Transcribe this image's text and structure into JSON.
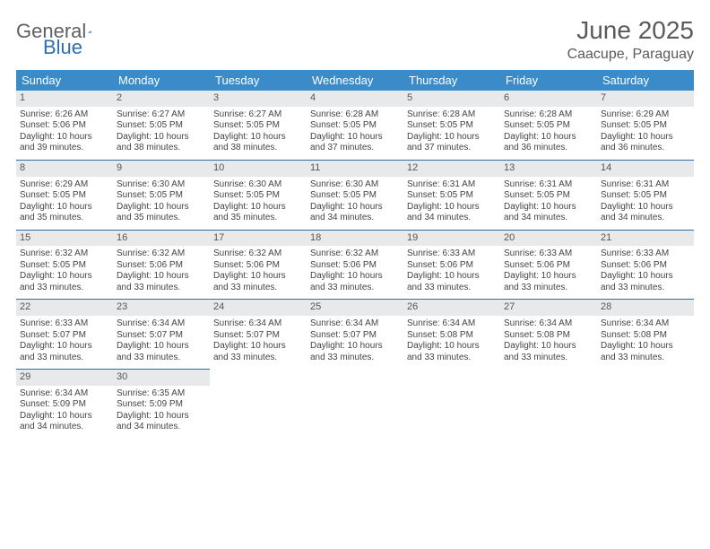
{
  "logo": {
    "text1": "General",
    "text2": "Blue",
    "color1": "#6a6a6a",
    "color2": "#2f6fae",
    "mark_color": "#2f6fae"
  },
  "title": "June 2025",
  "location": "Caacupe, Paraguay",
  "style": {
    "header_bg": "#3b8bc8",
    "daynum_bg": "#e7e9eb",
    "rule_color": "#2e6da4",
    "text_color": "#444444"
  },
  "day_headers": [
    "Sunday",
    "Monday",
    "Tuesday",
    "Wednesday",
    "Thursday",
    "Friday",
    "Saturday"
  ],
  "weeks": [
    [
      {
        "n": "1",
        "sr": "6:26 AM",
        "ss": "5:06 PM",
        "dl": "10 hours and 39 minutes."
      },
      {
        "n": "2",
        "sr": "6:27 AM",
        "ss": "5:05 PM",
        "dl": "10 hours and 38 minutes."
      },
      {
        "n": "3",
        "sr": "6:27 AM",
        "ss": "5:05 PM",
        "dl": "10 hours and 38 minutes."
      },
      {
        "n": "4",
        "sr": "6:28 AM",
        "ss": "5:05 PM",
        "dl": "10 hours and 37 minutes."
      },
      {
        "n": "5",
        "sr": "6:28 AM",
        "ss": "5:05 PM",
        "dl": "10 hours and 37 minutes."
      },
      {
        "n": "6",
        "sr": "6:28 AM",
        "ss": "5:05 PM",
        "dl": "10 hours and 36 minutes."
      },
      {
        "n": "7",
        "sr": "6:29 AM",
        "ss": "5:05 PM",
        "dl": "10 hours and 36 minutes."
      }
    ],
    [
      {
        "n": "8",
        "sr": "6:29 AM",
        "ss": "5:05 PM",
        "dl": "10 hours and 35 minutes."
      },
      {
        "n": "9",
        "sr": "6:30 AM",
        "ss": "5:05 PM",
        "dl": "10 hours and 35 minutes."
      },
      {
        "n": "10",
        "sr": "6:30 AM",
        "ss": "5:05 PM",
        "dl": "10 hours and 35 minutes."
      },
      {
        "n": "11",
        "sr": "6:30 AM",
        "ss": "5:05 PM",
        "dl": "10 hours and 34 minutes."
      },
      {
        "n": "12",
        "sr": "6:31 AM",
        "ss": "5:05 PM",
        "dl": "10 hours and 34 minutes."
      },
      {
        "n": "13",
        "sr": "6:31 AM",
        "ss": "5:05 PM",
        "dl": "10 hours and 34 minutes."
      },
      {
        "n": "14",
        "sr": "6:31 AM",
        "ss": "5:05 PM",
        "dl": "10 hours and 34 minutes."
      }
    ],
    [
      {
        "n": "15",
        "sr": "6:32 AM",
        "ss": "5:05 PM",
        "dl": "10 hours and 33 minutes."
      },
      {
        "n": "16",
        "sr": "6:32 AM",
        "ss": "5:06 PM",
        "dl": "10 hours and 33 minutes."
      },
      {
        "n": "17",
        "sr": "6:32 AM",
        "ss": "5:06 PM",
        "dl": "10 hours and 33 minutes."
      },
      {
        "n": "18",
        "sr": "6:32 AM",
        "ss": "5:06 PM",
        "dl": "10 hours and 33 minutes."
      },
      {
        "n": "19",
        "sr": "6:33 AM",
        "ss": "5:06 PM",
        "dl": "10 hours and 33 minutes."
      },
      {
        "n": "20",
        "sr": "6:33 AM",
        "ss": "5:06 PM",
        "dl": "10 hours and 33 minutes."
      },
      {
        "n": "21",
        "sr": "6:33 AM",
        "ss": "5:06 PM",
        "dl": "10 hours and 33 minutes."
      }
    ],
    [
      {
        "n": "22",
        "sr": "6:33 AM",
        "ss": "5:07 PM",
        "dl": "10 hours and 33 minutes."
      },
      {
        "n": "23",
        "sr": "6:34 AM",
        "ss": "5:07 PM",
        "dl": "10 hours and 33 minutes."
      },
      {
        "n": "24",
        "sr": "6:34 AM",
        "ss": "5:07 PM",
        "dl": "10 hours and 33 minutes."
      },
      {
        "n": "25",
        "sr": "6:34 AM",
        "ss": "5:07 PM",
        "dl": "10 hours and 33 minutes."
      },
      {
        "n": "26",
        "sr": "6:34 AM",
        "ss": "5:08 PM",
        "dl": "10 hours and 33 minutes."
      },
      {
        "n": "27",
        "sr": "6:34 AM",
        "ss": "5:08 PM",
        "dl": "10 hours and 33 minutes."
      },
      {
        "n": "28",
        "sr": "6:34 AM",
        "ss": "5:08 PM",
        "dl": "10 hours and 33 minutes."
      }
    ],
    [
      {
        "n": "29",
        "sr": "6:34 AM",
        "ss": "5:09 PM",
        "dl": "10 hours and 34 minutes."
      },
      {
        "n": "30",
        "sr": "6:35 AM",
        "ss": "5:09 PM",
        "dl": "10 hours and 34 minutes."
      },
      null,
      null,
      null,
      null,
      null
    ]
  ],
  "labels": {
    "sunrise": "Sunrise: ",
    "sunset": "Sunset: ",
    "daylight": "Daylight: "
  }
}
